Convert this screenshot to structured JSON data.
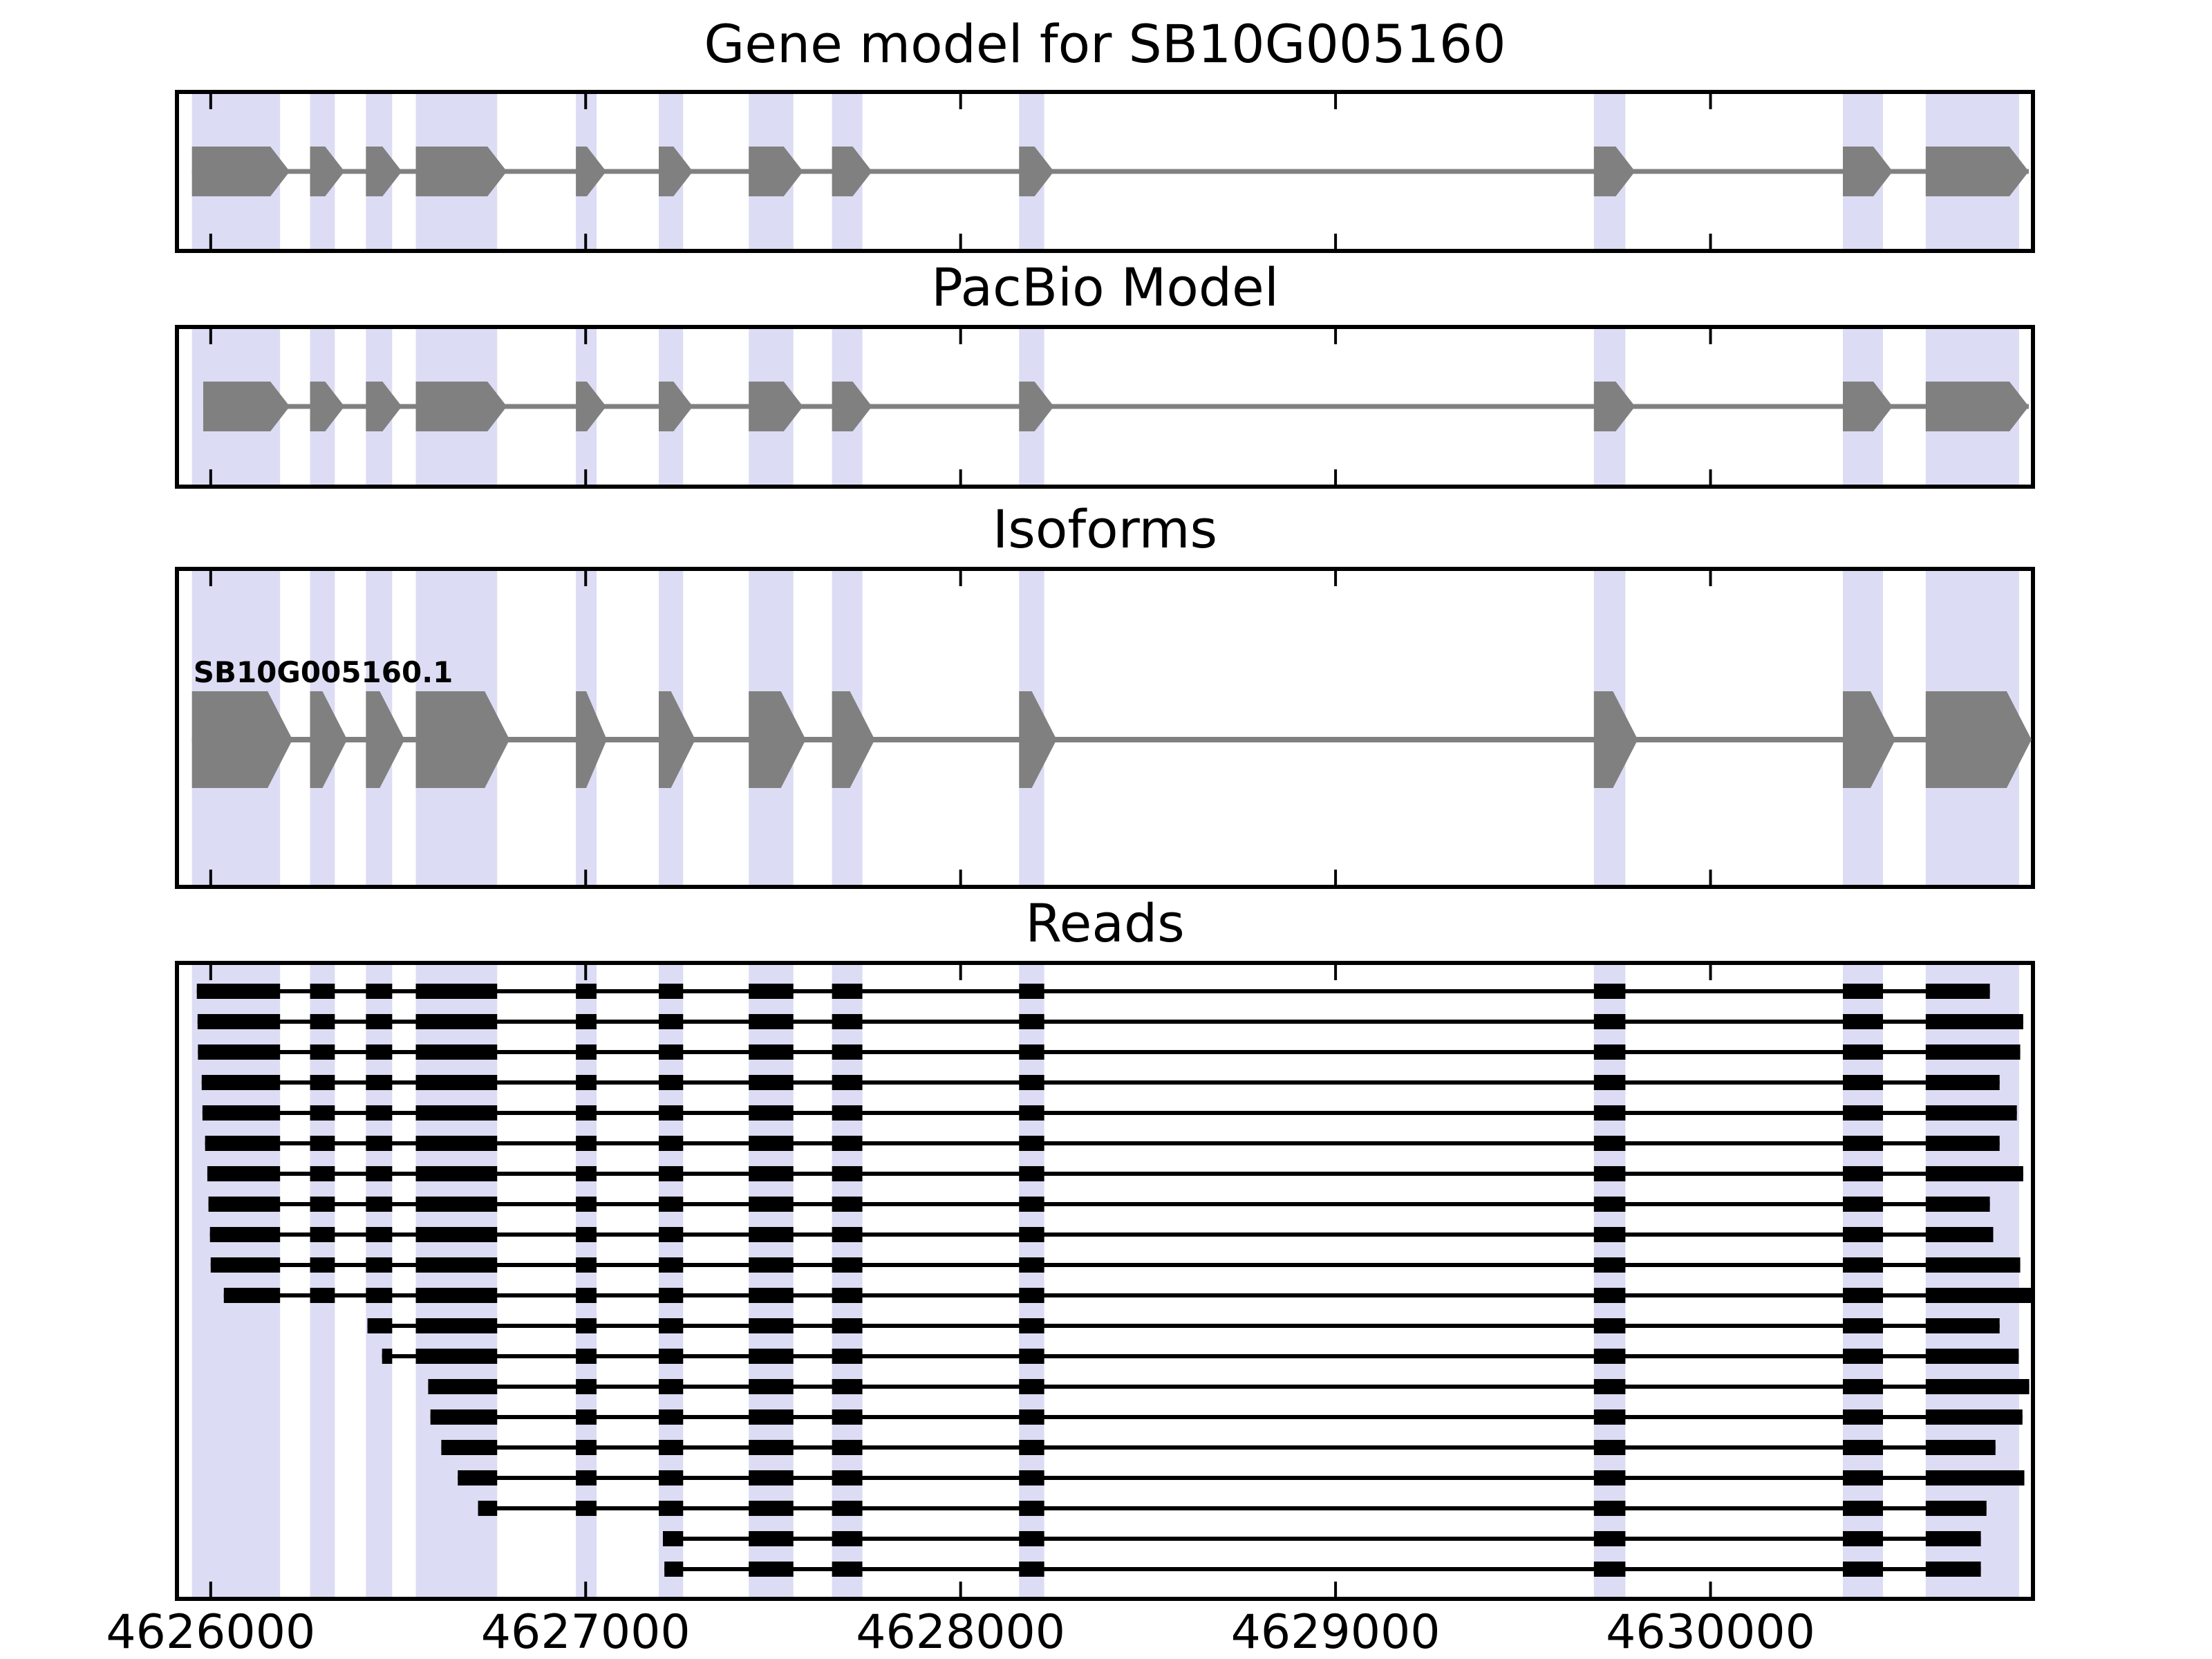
{
  "titles": {
    "gene_model": "Gene model for SB10G005160",
    "pacbio": "PacBio Model",
    "isoforms": "Isoforms",
    "reads": "Reads"
  },
  "x_axis": {
    "xlim": [
      4625910,
      4630860
    ],
    "ticks": [
      4626000,
      4627000,
      4628000,
      4629000,
      4630000
    ],
    "tick_labels": [
      "4626000",
      "4627000",
      "4628000",
      "4629000",
      "4630000"
    ]
  },
  "colors": {
    "exon_gray": "#808080",
    "intron_gray": "#808080",
    "read_black": "#000000",
    "highlight_band": "#dcdcf4",
    "panel_border": "#000000",
    "background": "#ffffff",
    "text": "#000000"
  },
  "chart_data": {
    "type": "genomic-tracks",
    "coordinate_unit": "genomic position (bp)",
    "xlim": [
      4625910,
      4630860
    ],
    "x_ticks": [
      4626000,
      4627000,
      4628000,
      4629000,
      4630000
    ],
    "highlight_regions": [
      [
        4625950,
        4626185
      ],
      [
        4626265,
        4626331
      ],
      [
        4626414,
        4626484
      ],
      [
        4626547,
        4626764
      ],
      [
        4626974,
        4627029
      ],
      [
        4627195,
        4627260
      ],
      [
        4627435,
        4627554
      ],
      [
        4627657,
        4627738
      ],
      [
        4628156,
        4628223
      ],
      [
        4629689,
        4629773
      ],
      [
        4630353,
        4630460
      ],
      [
        4630574,
        4630823
      ]
    ],
    "tracks": [
      {
        "name": "Gene model",
        "title": "Gene model for SB10G005160",
        "strand": "+",
        "exons": [
          [
            4625950,
            4626185
          ],
          [
            4626265,
            4626331
          ],
          [
            4626414,
            4626484
          ],
          [
            4626547,
            4626764
          ],
          [
            4626974,
            4627029
          ],
          [
            4627195,
            4627260
          ],
          [
            4627435,
            4627554
          ],
          [
            4627657,
            4627738
          ],
          [
            4628156,
            4628223
          ],
          [
            4629689,
            4629773
          ],
          [
            4630353,
            4630460
          ],
          [
            4630574,
            4630823
          ]
        ]
      },
      {
        "name": "PacBio Model",
        "title": "PacBio Model",
        "strand": "+",
        "exons": [
          [
            4625980,
            4626185
          ],
          [
            4626265,
            4626331
          ],
          [
            4626414,
            4626484
          ],
          [
            4626547,
            4626764
          ],
          [
            4626974,
            4627029
          ],
          [
            4627195,
            4627260
          ],
          [
            4627435,
            4627554
          ],
          [
            4627657,
            4627738
          ],
          [
            4628156,
            4628223
          ],
          [
            4629689,
            4629773
          ],
          [
            4630353,
            4630460
          ],
          [
            4630574,
            4630823
          ]
        ]
      },
      {
        "name": "Isoforms",
        "title": "Isoforms",
        "isoforms": [
          {
            "id": "SB10G005160.1",
            "strand": "+",
            "exons": [
              [
                4625950,
                4626185
              ],
              [
                4626265,
                4626331
              ],
              [
                4626414,
                4626484
              ],
              [
                4626547,
                4626764
              ],
              [
                4626974,
                4627029
              ],
              [
                4627195,
                4627260
              ],
              [
                4627435,
                4627554
              ],
              [
                4627657,
                4627738
              ],
              [
                4628156,
                4628223
              ],
              [
                4629689,
                4629773
              ],
              [
                4630353,
                4630460
              ],
              [
                4630574,
                4630823
              ]
            ]
          }
        ]
      },
      {
        "name": "Reads",
        "title": "Reads",
        "reads": [
          {
            "start": 4625963,
            "end": 4630745
          },
          {
            "start": 4625965,
            "end": 4630834
          },
          {
            "start": 4625966,
            "end": 4630826
          },
          {
            "start": 4625976,
            "end": 4630771
          },
          {
            "start": 4625978,
            "end": 4630817
          },
          {
            "start": 4625985,
            "end": 4630771
          },
          {
            "start": 4625991,
            "end": 4630834
          },
          {
            "start": 4625994,
            "end": 4630745
          },
          {
            "start": 4625998,
            "end": 4630754
          },
          {
            "start": 4626000,
            "end": 4630826
          },
          {
            "start": 4626035,
            "end": 4630859
          },
          {
            "start": 4626418,
            "end": 4630771
          },
          {
            "start": 4626457,
            "end": 4630822
          },
          {
            "start": 4626580,
            "end": 4630850
          },
          {
            "start": 4626586,
            "end": 4630832
          },
          {
            "start": 4626615,
            "end": 4630760
          },
          {
            "start": 4626659,
            "end": 4630837
          },
          {
            "start": 4626713,
            "end": 4630736
          },
          {
            "start": 4627206,
            "end": 4630721
          },
          {
            "start": 4627210,
            "end": 4630721
          }
        ]
      }
    ]
  }
}
